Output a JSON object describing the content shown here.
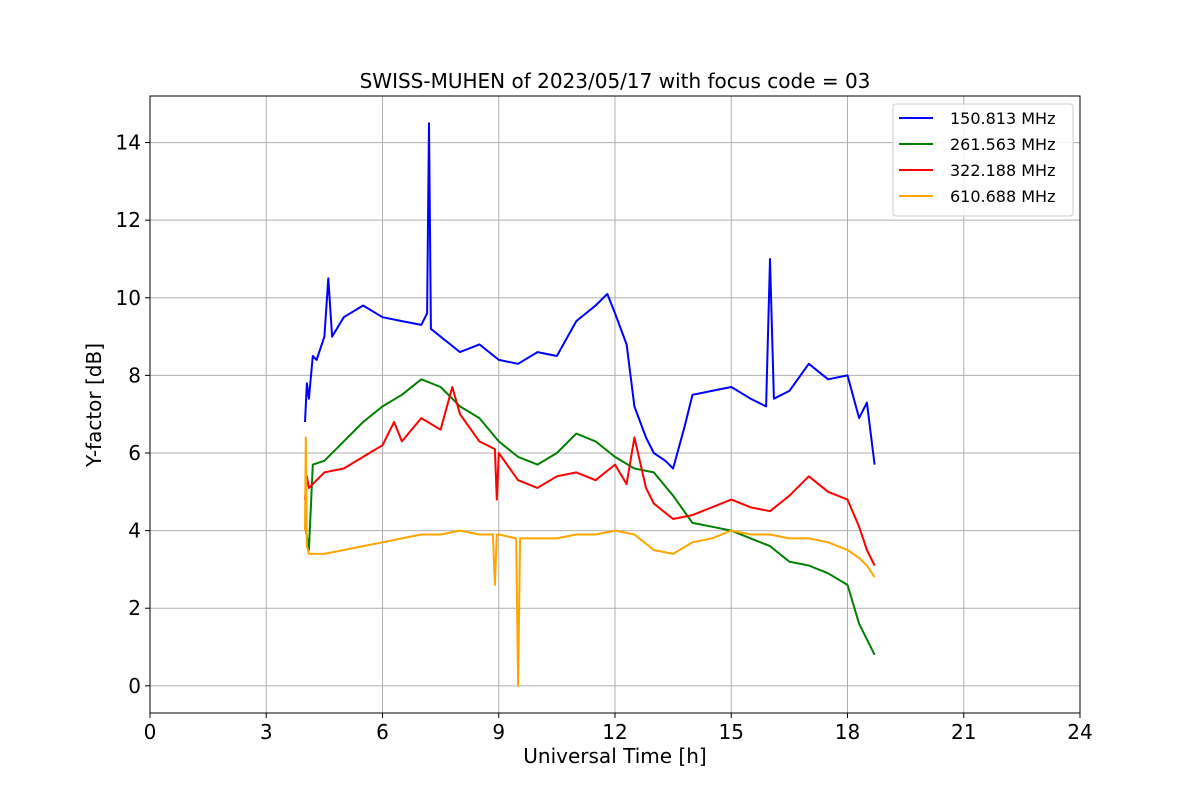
{
  "chart_data": {
    "type": "line",
    "title": "SWISS-MUHEN of 2023/05/17 with focus code = 03",
    "xlabel": "Universal Time [h]",
    "ylabel": "Y-factor [dB]",
    "xlim": [
      0,
      24
    ],
    "ylim": [
      -0.7,
      15.2
    ],
    "xticks": [
      0,
      3,
      6,
      9,
      12,
      15,
      18,
      21,
      24
    ],
    "yticks": [
      0,
      2,
      4,
      6,
      8,
      10,
      12,
      14
    ],
    "grid": true,
    "legend_position": "top-right",
    "series": [
      {
        "name": "150.813 MHz",
        "color": "#0000ff",
        "x": [
          4.0,
          4.05,
          4.1,
          4.2,
          4.3,
          4.5,
          4.6,
          4.7,
          5.0,
          5.5,
          6.0,
          6.5,
          7.0,
          7.15,
          7.2,
          7.25,
          7.5,
          8.0,
          8.5,
          9.0,
          9.5,
          10.0,
          10.5,
          11.0,
          11.5,
          11.8,
          12.0,
          12.3,
          12.5,
          12.8,
          13.0,
          13.3,
          13.5,
          13.8,
          14.0,
          14.5,
          15.0,
          15.5,
          15.9,
          16.0,
          16.1,
          16.5,
          17.0,
          17.5,
          18.0,
          18.3,
          18.5,
          18.7
        ],
        "y": [
          6.8,
          7.8,
          7.4,
          8.5,
          8.4,
          9.0,
          10.5,
          9.0,
          9.5,
          9.8,
          9.5,
          9.4,
          9.3,
          9.6,
          14.5,
          9.2,
          9.0,
          8.6,
          8.8,
          8.4,
          8.3,
          8.6,
          8.5,
          9.4,
          9.8,
          10.1,
          9.6,
          8.8,
          7.2,
          6.4,
          6.0,
          5.8,
          5.6,
          6.7,
          7.5,
          7.6,
          7.7,
          7.4,
          7.2,
          11.0,
          7.4,
          7.6,
          8.3,
          7.9,
          8.0,
          6.9,
          7.3,
          5.7
        ]
      },
      {
        "name": "261.563 MHz",
        "color": "#008000",
        "x": [
          4.0,
          4.1,
          4.2,
          4.5,
          5.0,
          5.5,
          6.0,
          6.5,
          7.0,
          7.5,
          8.0,
          8.5,
          9.0,
          9.5,
          10.0,
          10.5,
          11.0,
          11.5,
          12.0,
          12.5,
          13.0,
          13.5,
          14.0,
          14.5,
          15.0,
          15.5,
          16.0,
          16.5,
          17.0,
          17.5,
          18.0,
          18.3,
          18.5,
          18.7
        ],
        "y": [
          4.2,
          3.5,
          5.7,
          5.8,
          6.3,
          6.8,
          7.2,
          7.5,
          7.9,
          7.7,
          7.2,
          6.9,
          6.3,
          5.9,
          5.7,
          6.0,
          6.5,
          6.3,
          5.9,
          5.6,
          5.5,
          4.9,
          4.2,
          4.1,
          4.0,
          3.8,
          3.6,
          3.2,
          3.1,
          2.9,
          2.6,
          1.6,
          1.2,
          0.8
        ]
      },
      {
        "name": "322.188 MHz",
        "color": "#ff0000",
        "x": [
          4.0,
          4.05,
          4.1,
          4.5,
          5.0,
          5.5,
          6.0,
          6.3,
          6.5,
          7.0,
          7.5,
          7.8,
          8.0,
          8.5,
          8.9,
          8.95,
          9.0,
          9.5,
          10.0,
          10.5,
          11.0,
          11.5,
          12.0,
          12.3,
          12.5,
          12.8,
          13.0,
          13.5,
          14.0,
          14.5,
          15.0,
          15.5,
          16.0,
          16.5,
          17.0,
          17.5,
          18.0,
          18.3,
          18.5,
          18.7
        ],
        "y": [
          4.8,
          5.4,
          5.1,
          5.5,
          5.6,
          5.9,
          6.2,
          6.8,
          6.3,
          6.9,
          6.6,
          7.7,
          7.0,
          6.3,
          6.1,
          4.8,
          6.0,
          5.3,
          5.1,
          5.4,
          5.5,
          5.3,
          5.7,
          5.2,
          6.4,
          5.1,
          4.7,
          4.3,
          4.4,
          4.6,
          4.8,
          4.6,
          4.5,
          4.9,
          5.4,
          5.0,
          4.8,
          4.1,
          3.5,
          3.1
        ]
      },
      {
        "name": "610.688 MHz",
        "color": "#ffa500",
        "x": [
          4.0,
          4.02,
          4.05,
          4.1,
          4.5,
          5.0,
          5.5,
          6.0,
          6.5,
          7.0,
          7.5,
          8.0,
          8.5,
          8.85,
          8.9,
          8.95,
          9.0,
          9.45,
          9.5,
          9.55,
          10.0,
          10.5,
          11.0,
          11.5,
          12.0,
          12.5,
          13.0,
          13.5,
          14.0,
          14.5,
          15.0,
          15.5,
          16.0,
          16.5,
          17.0,
          17.5,
          18.0,
          18.3,
          18.5,
          18.7
        ],
        "y": [
          4.0,
          6.4,
          3.6,
          3.4,
          3.4,
          3.5,
          3.6,
          3.7,
          3.8,
          3.9,
          3.9,
          4.0,
          3.9,
          3.9,
          2.6,
          3.9,
          3.9,
          3.8,
          0.0,
          3.8,
          3.8,
          3.8,
          3.9,
          3.9,
          4.0,
          3.9,
          3.5,
          3.4,
          3.7,
          3.8,
          4.0,
          3.9,
          3.9,
          3.8,
          3.8,
          3.7,
          3.5,
          3.3,
          3.1,
          2.8
        ]
      }
    ]
  }
}
